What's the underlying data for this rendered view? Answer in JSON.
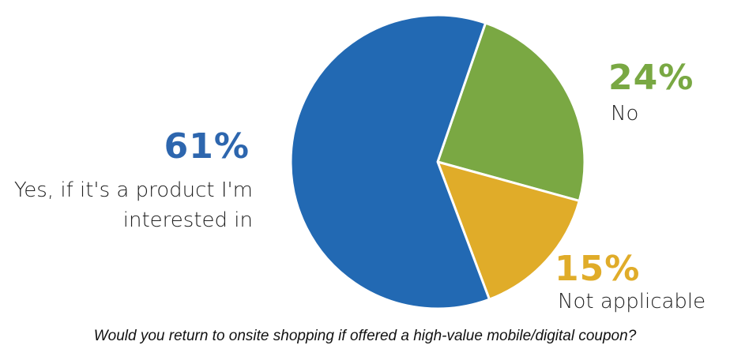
{
  "chart_data": {
    "type": "pie",
    "title": "Would you return to onsite shopping if offered a high-value mobile/digital coupon?",
    "slices": [
      {
        "label": "Yes, if it's a product I'm interested in",
        "value": 61,
        "value_label": "61%",
        "color": "#2269b3"
      },
      {
        "label": "No",
        "value": 24,
        "value_label": "24%",
        "color": "#7aa843"
      },
      {
        "label": "Not applicable",
        "value": 15,
        "value_label": "15%",
        "color": "#e0ac29"
      }
    ],
    "legend": "none"
  },
  "labels": {
    "yes_pct": "61%",
    "yes_line1": "Yes, if it's a product I'm",
    "yes_line2": "interested in",
    "no_pct": "24%",
    "no_text": "No",
    "na_pct": "15%",
    "na_text": "Not applicable"
  },
  "caption": "Would you return to onsite shopping if offered a high-value mobile/digital coupon?"
}
